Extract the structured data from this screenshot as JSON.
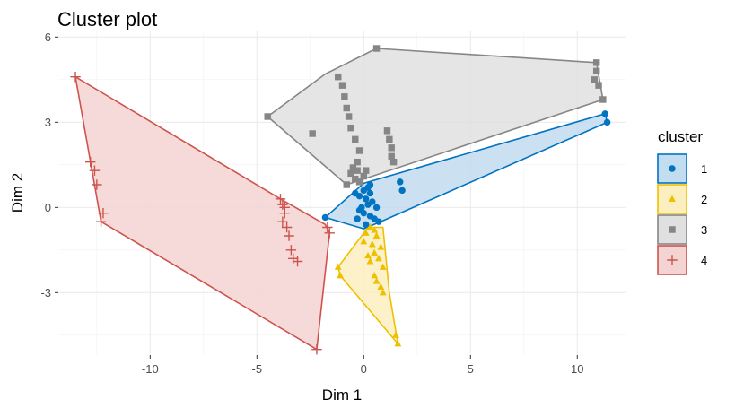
{
  "chart_data": {
    "type": "scatter",
    "title": "Cluster plot",
    "xlabel": "Dim 1",
    "ylabel": "Dim 2",
    "xlim": [
      -14.3,
      12.3
    ],
    "ylim": [
      -5.2,
      6.2
    ],
    "x_ticks": [
      -10,
      -5,
      0,
      5,
      10
    ],
    "x_tick_labels": [
      "-10",
      "-5",
      "0",
      "5",
      "10"
    ],
    "y_ticks": [
      -3,
      0,
      3,
      6
    ],
    "y_tick_labels": [
      "-3",
      "0",
      "3",
      "6"
    ],
    "grid": true,
    "legend": {
      "title": "cluster",
      "position": "right"
    },
    "series": [
      {
        "name": "1",
        "color": "#0073C2",
        "fill": "#C2DCF0",
        "marker": "circle",
        "hull": [
          [
            -1.8,
            -0.35
          ],
          [
            0,
            0.85
          ],
          [
            11.3,
            3.3
          ],
          [
            11.4,
            3.0
          ],
          [
            0.8,
            -0.5
          ],
          [
            0,
            -0.75
          ]
        ],
        "points": [
          [
            -1.8,
            -0.35
          ],
          [
            11.3,
            3.3
          ],
          [
            11.4,
            3.0
          ],
          [
            1.7,
            0.9
          ],
          [
            1.8,
            0.6
          ],
          [
            -0.4,
            0.5
          ],
          [
            -0.2,
            0.4
          ],
          [
            0.1,
            0.3
          ],
          [
            0.3,
            0.5
          ],
          [
            0.2,
            0.1
          ],
          [
            -0.1,
            0.0
          ],
          [
            0.0,
            -0.2
          ],
          [
            0.3,
            -0.3
          ],
          [
            0.5,
            -0.4
          ],
          [
            0.7,
            -0.5
          ],
          [
            -0.3,
            -0.4
          ],
          [
            0.1,
            -0.6
          ],
          [
            0.2,
            0.7
          ],
          [
            0.4,
            0.2
          ],
          [
            0.6,
            0.0
          ],
          [
            -0.2,
            -0.1
          ],
          [
            0.0,
            0.6
          ],
          [
            0.3,
            0.8
          ]
        ]
      },
      {
        "name": "2",
        "color": "#EFC000",
        "fill": "#FBEFC0",
        "marker": "triangle",
        "hull": [
          [
            -1.2,
            -2.1
          ],
          [
            0.2,
            -0.7
          ],
          [
            0.9,
            -0.7
          ],
          [
            1.2,
            -3.0
          ],
          [
            1.6,
            -4.8
          ],
          [
            -1.1,
            -2.4
          ]
        ],
        "points": [
          [
            -1.2,
            -2.1
          ],
          [
            -1.1,
            -2.4
          ],
          [
            1.6,
            -4.8
          ],
          [
            1.5,
            -4.5
          ],
          [
            0.9,
            -3.0
          ],
          [
            0.8,
            -2.8
          ],
          [
            0.5,
            -2.4
          ],
          [
            0.2,
            -1.7
          ],
          [
            0.0,
            -1.2
          ],
          [
            0.1,
            -0.9
          ],
          [
            0.3,
            -0.7
          ],
          [
            0.5,
            -0.8
          ],
          [
            0.6,
            -1.0
          ],
          [
            0.4,
            -1.3
          ],
          [
            0.5,
            -1.6
          ],
          [
            0.7,
            -1.8
          ],
          [
            0.8,
            -1.4
          ],
          [
            0.9,
            -2.1
          ],
          [
            0.3,
            -1.9
          ],
          [
            0.6,
            -2.6
          ]
        ]
      },
      {
        "name": "3",
        "color": "#868686",
        "fill": "#E0E0E0",
        "marker": "square",
        "hull": [
          [
            -4.5,
            3.2
          ],
          [
            -1.8,
            4.7
          ],
          [
            0.6,
            5.6
          ],
          [
            10.9,
            5.1
          ],
          [
            11.2,
            3.8
          ],
          [
            -0.8,
            0.8
          ]
        ],
        "points": [
          [
            -4.5,
            3.2
          ],
          [
            0.6,
            5.6
          ],
          [
            10.9,
            5.1
          ],
          [
            11.2,
            3.8
          ],
          [
            11.0,
            4.3
          ],
          [
            10.8,
            4.5
          ],
          [
            10.9,
            4.8
          ],
          [
            -2.4,
            2.6
          ],
          [
            -1.2,
            4.6
          ],
          [
            -1.0,
            4.3
          ],
          [
            -0.9,
            3.9
          ],
          [
            -0.8,
            3.5
          ],
          [
            -0.7,
            3.2
          ],
          [
            -0.6,
            2.8
          ],
          [
            -0.4,
            2.4
          ],
          [
            -0.2,
            2.0
          ],
          [
            -0.3,
            1.6
          ],
          [
            -0.5,
            1.4
          ],
          [
            -0.6,
            1.2
          ],
          [
            -0.4,
            1.0
          ],
          [
            -0.2,
            0.9
          ],
          [
            -0.8,
            0.8
          ],
          [
            1.1,
            2.7
          ],
          [
            1.2,
            2.4
          ],
          [
            1.3,
            2.1
          ],
          [
            1.3,
            1.8
          ],
          [
            1.4,
            1.6
          ],
          [
            -0.3,
            1.3
          ],
          [
            0.0,
            1.1
          ],
          [
            0.1,
            1.3
          ]
        ]
      },
      {
        "name": "4",
        "color": "#CD534C",
        "fill": "#F3D4D2",
        "marker": "cross",
        "hull": [
          [
            -13.5,
            4.6
          ],
          [
            -12.3,
            -0.5
          ],
          [
            -2.2,
            -5.0
          ],
          [
            -1.6,
            -0.9
          ],
          [
            -1.8,
            -0.6
          ],
          [
            -3.9,
            0.3
          ]
        ],
        "points": [
          [
            -13.5,
            4.6
          ],
          [
            -12.8,
            1.6
          ],
          [
            -12.6,
            1.3
          ],
          [
            -12.5,
            0.8
          ],
          [
            -12.2,
            -0.2
          ],
          [
            -12.3,
            -0.5
          ],
          [
            -2.2,
            -5.0
          ],
          [
            -1.6,
            -0.9
          ],
          [
            -1.7,
            -0.7
          ],
          [
            -3.9,
            0.3
          ],
          [
            -3.8,
            0.1
          ],
          [
            -3.7,
            -0.2
          ],
          [
            -3.8,
            -0.5
          ],
          [
            -3.6,
            -0.7
          ],
          [
            -3.5,
            -1.0
          ],
          [
            -3.4,
            -1.5
          ],
          [
            -3.3,
            -1.8
          ],
          [
            -3.1,
            -1.9
          ],
          [
            -3.7,
            0.0
          ]
        ]
      }
    ]
  }
}
